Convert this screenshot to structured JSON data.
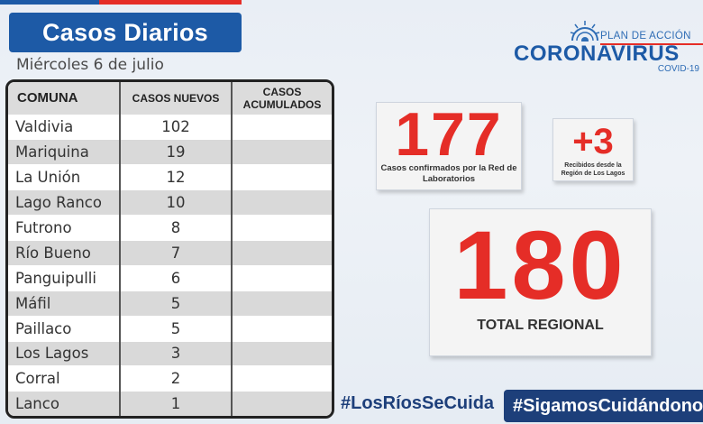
{
  "header": {
    "title": "Casos Diarios",
    "date": "Miércoles 6 de julio"
  },
  "logo": {
    "top_line": "PLAN DE ACCIÓN",
    "main": "CORONAVIRUS",
    "sub": "COVID-19",
    "icon": "virus-icon"
  },
  "table": {
    "headers": [
      "COMUNA",
      "CASOS NUEVOS",
      "CASOS ACUMULADOS"
    ],
    "rows": [
      {
        "comuna": "Valdivia",
        "nuevos": "102",
        "acumulados": ""
      },
      {
        "comuna": "Mariquina",
        "nuevos": "19",
        "acumulados": ""
      },
      {
        "comuna": "La Unión",
        "nuevos": "12",
        "acumulados": ""
      },
      {
        "comuna": "Lago Ranco",
        "nuevos": "10",
        "acumulados": ""
      },
      {
        "comuna": "Futrono",
        "nuevos": "8",
        "acumulados": ""
      },
      {
        "comuna": "Río Bueno",
        "nuevos": "7",
        "acumulados": ""
      },
      {
        "comuna": "Panguipulli",
        "nuevos": "6",
        "acumulados": ""
      },
      {
        "comuna": "Máfil",
        "nuevos": "5",
        "acumulados": ""
      },
      {
        "comuna": "Paillaco",
        "nuevos": "5",
        "acumulados": ""
      },
      {
        "comuna": "Los Lagos",
        "nuevos": "3",
        "acumulados": ""
      },
      {
        "comuna": "Corral",
        "nuevos": "2",
        "acumulados": ""
      },
      {
        "comuna": "Lanco",
        "nuevos": "1",
        "acumulados": ""
      }
    ]
  },
  "stats": {
    "lab": {
      "value": "177",
      "label": "Casos confirmados por la Red de Laboratorios"
    },
    "received": {
      "value": "+3",
      "label": "Recibidos desde la Región de Los Lagos"
    },
    "total": {
      "value": "180",
      "label": "TOTAL REGIONAL"
    }
  },
  "hashtags": {
    "first": "#LosRíosSeCuida",
    "second": "#SigamosCuidándonos"
  },
  "colors": {
    "brand_blue": "#1d5aa6",
    "accent_red": "#e52d27",
    "dark_navy": "#1d3f7a"
  }
}
